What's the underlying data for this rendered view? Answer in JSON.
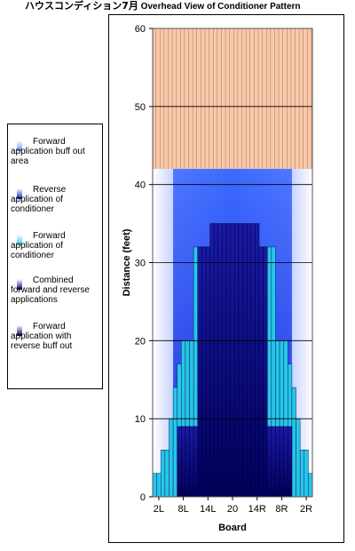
{
  "title": {
    "prefix": "ハウスコンディション7月",
    "main": "Overhead View of Conditioner Pattern"
  },
  "legend": [
    {
      "label": "Forward application  buff out area",
      "color": "#6f8dff"
    },
    {
      "label": "Reverse application  of conditioner",
      "color": "#0f17b8"
    },
    {
      "label": "Forward application  of conditioner",
      "color": "#27c6ec"
    },
    {
      "label": "Combined forward and reverse applications",
      "color": "#00006a"
    },
    {
      "label": "Forward application  with reverse buff out",
      "color": "#000050"
    }
  ],
  "colors": {
    "forward_buff": "#6f8dff",
    "reverse": "#0f17b8",
    "forward": "#27c6ec",
    "combined": "#00006a",
    "forward_reverse_buff": "#000050",
    "pin_area": "#f9c8a8"
  },
  "chart_data": {
    "type": "area",
    "title": "",
    "xlabel": "Board",
    "ylabel": "Distance (feet)",
    "ylim": [
      0,
      60
    ],
    "yticks": [
      0,
      10,
      20,
      30,
      40,
      50,
      60
    ],
    "x_tick_labels": [
      "2L",
      "8L",
      "14L",
      "20",
      "14R",
      "8R",
      "2R"
    ],
    "boards": [
      "1L",
      "2L",
      "3L",
      "4L",
      "5L",
      "6L",
      "7L",
      "8L",
      "9L",
      "10L",
      "11L",
      "12L",
      "13L",
      "14L",
      "15L",
      "16L",
      "17L",
      "18L",
      "19L",
      "20",
      "19R",
      "18R",
      "17R",
      "16R",
      "15R",
      "14R",
      "13R",
      "12R",
      "11R",
      "10R",
      "9R",
      "8R",
      "7R",
      "6R",
      "5R",
      "4R",
      "3R",
      "2R",
      "1R"
    ],
    "forward_buff_out_distance": 42,
    "series": [
      {
        "name": "Forward application  of conditioner",
        "values": [
          3,
          3,
          6,
          6,
          10,
          14,
          17,
          20,
          20,
          20,
          32,
          32,
          32,
          32,
          32,
          32,
          32,
          32,
          32,
          32,
          32,
          32,
          32,
          32,
          32,
          32,
          32,
          32,
          32,
          32,
          20,
          20,
          20,
          17,
          14,
          10,
          6,
          6,
          3
        ]
      },
      {
        "name": "Combined forward and reverse applications",
        "values": [
          0,
          0,
          0,
          0,
          0,
          0,
          9,
          9,
          9,
          9,
          9,
          32,
          32,
          32,
          35,
          35,
          35,
          35,
          35,
          35,
          35,
          35,
          35,
          35,
          35,
          35,
          32,
          32,
          9,
          9,
          9,
          9,
          9,
          9,
          0,
          0,
          0,
          0,
          0
        ]
      }
    ],
    "grid": true
  },
  "axis": {
    "xlabel": "Board",
    "ylabel": "Distance (feet)"
  }
}
